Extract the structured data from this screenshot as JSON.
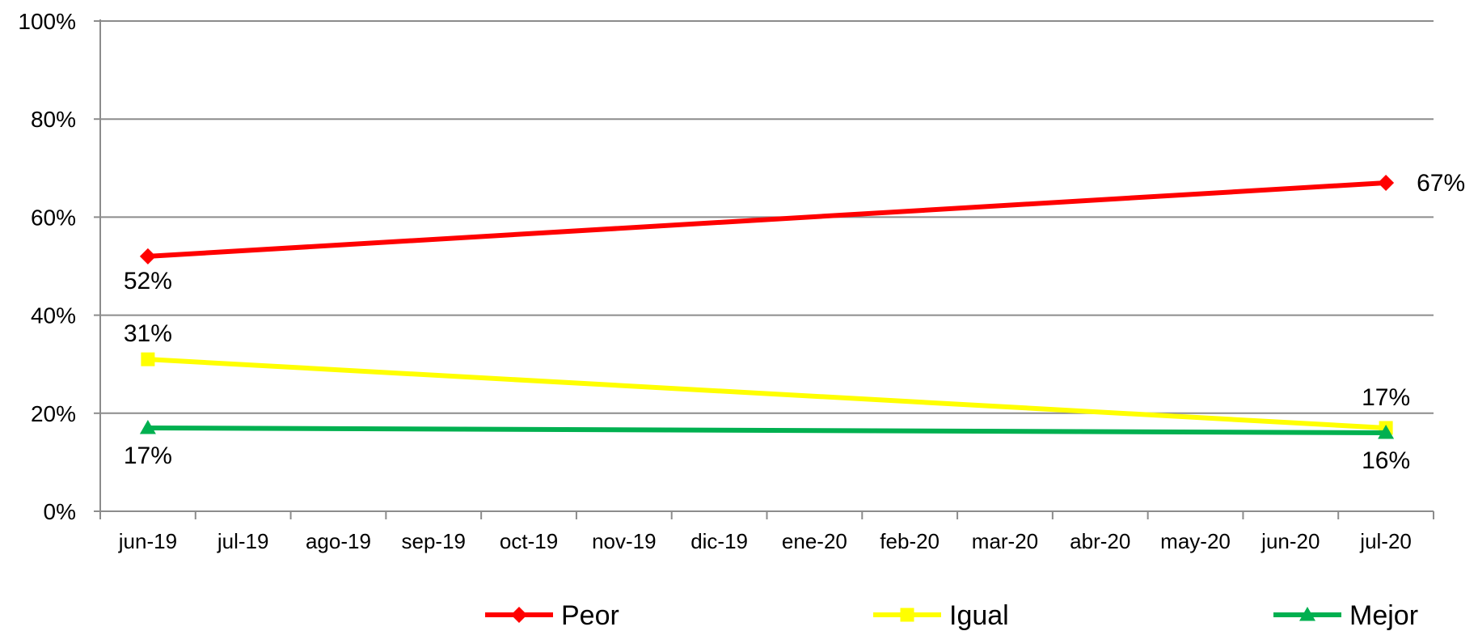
{
  "chart_data": {
    "type": "line",
    "categories": [
      "jun-19",
      "jul-19",
      "ago-19",
      "sep-19",
      "oct-19",
      "nov-19",
      "dic-19",
      "ene-20",
      "feb-20",
      "mar-20",
      "abr-20",
      "may-20",
      "jun-20",
      "jul-20"
    ],
    "ylim": [
      0,
      100
    ],
    "yticks": [
      "0%",
      "20%",
      "40%",
      "60%",
      "80%",
      "100%"
    ],
    "grid": true,
    "legend_position": "bottom",
    "series": [
      {
        "name": "Peor",
        "color": "#ff0000",
        "marker": "diamond",
        "points": [
          {
            "category": "jun-19",
            "value": 52,
            "label": "52%"
          },
          {
            "category": "jul-20",
            "value": 67,
            "label": "67%"
          }
        ]
      },
      {
        "name": "Igual",
        "color": "#ffff00",
        "marker": "square",
        "points": [
          {
            "category": "jun-19",
            "value": 31,
            "label": "31%"
          },
          {
            "category": "jul-20",
            "value": 17,
            "label": "17%"
          }
        ]
      },
      {
        "name": "Mejor",
        "color": "#00b050",
        "marker": "triangle",
        "points": [
          {
            "category": "jun-19",
            "value": 17,
            "label": "17%"
          },
          {
            "category": "jul-20",
            "value": 16,
            "label": "16%"
          }
        ]
      }
    ]
  }
}
